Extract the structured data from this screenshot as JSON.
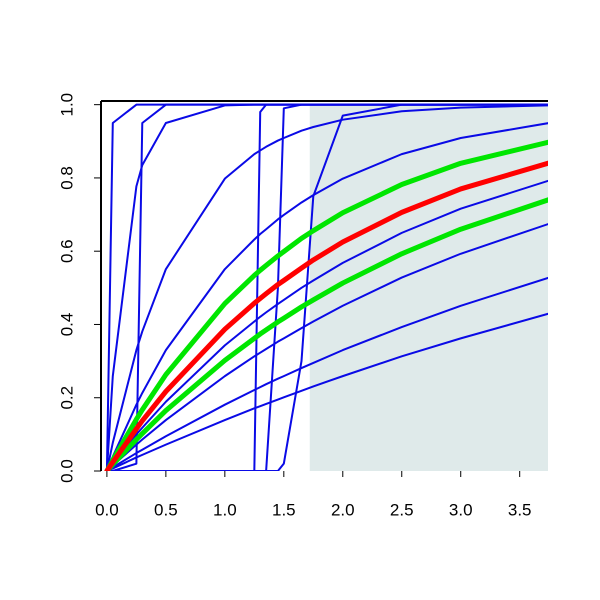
{
  "chart_data": {
    "type": "line",
    "x": [
      0,
      0.05,
      0.25,
      0.3,
      0.5,
      1.0,
      1.25,
      1.3,
      1.35,
      1.45,
      1.5,
      1.65,
      1.75,
      2.0,
      2.5,
      3.0,
      3.75
    ],
    "xlim": [
      -0.05,
      3.74
    ],
    "ylim": [
      0,
      1.01
    ],
    "xticks": [
      {
        "value": 0,
        "label": "0.0"
      },
      0.5,
      {
        "value": 1,
        "label": "1.0"
      },
      1.5,
      {
        "value": 2,
        "label": "2.0"
      },
      2.5,
      {
        "value": 3,
        "label": "3.0"
      },
      3.5
    ],
    "yticks": [
      {
        "value": 0,
        "label": "0.0"
      },
      0.2,
      0.4,
      0.6,
      0.8,
      {
        "value": 1,
        "label": "1.0"
      }
    ],
    "highlight": {
      "x": [
        1.72,
        3.74
      ],
      "y": [
        0,
        1
      ],
      "color": "#dfeaea"
    },
    "series": [
      {
        "color": "#0a0ae6",
        "line_width": 2,
        "values": [
          0,
          0.007,
          0.037,
          0.044,
          0.072,
          0.139,
          0.171,
          0.177,
          0.183,
          0.195,
          0.201,
          0.219,
          0.231,
          0.259,
          0.313,
          0.362,
          0.43
        ]
      },
      {
        "color": "#0a0ae6",
        "line_width": 2,
        "values": [
          0,
          0.01,
          0.049,
          0.058,
          0.095,
          0.181,
          0.221,
          0.229,
          0.237,
          0.252,
          0.259,
          0.281,
          0.295,
          0.33,
          0.393,
          0.451,
          0.528
        ]
      },
      {
        "color": "#0a0ae6",
        "line_width": 2,
        "values": [
          0,
          0.015,
          0.072,
          0.086,
          0.139,
          0.259,
          0.313,
          0.323,
          0.333,
          0.353,
          0.362,
          0.39,
          0.408,
          0.451,
          0.528,
          0.593,
          0.675
        ]
      },
      {
        "color": "#0a0ae6",
        "line_width": 2,
        "values": [
          0,
          0.021,
          0.1,
          0.118,
          0.189,
          0.343,
          0.408,
          0.421,
          0.433,
          0.456,
          0.467,
          0.5,
          0.52,
          0.568,
          0.65,
          0.716,
          0.793
        ]
      },
      {
        "color": "#0a0ae6",
        "line_width": 2,
        "values": [
          0,
          0.039,
          0.181,
          0.213,
          0.33,
          0.551,
          0.632,
          0.647,
          0.66,
          0.687,
          0.699,
          0.733,
          0.753,
          0.798,
          0.865,
          0.909,
          0.95
        ]
      },
      {
        "color": "#0a0ae6",
        "line_width": 2,
        "values": [
          0,
          0.077,
          0.33,
          0.381,
          0.551,
          0.798,
          0.865,
          0.875,
          0.885,
          0.902,
          0.909,
          0.929,
          0.939,
          0.959,
          0.982,
          0.992,
          0.998
        ]
      },
      {
        "color": "#0a0ae6",
        "line_width": 2,
        "values": [
          0,
          0.259,
          0.777,
          0.835,
          0.95,
          0.998,
          1,
          1,
          1,
          1,
          1,
          1,
          1,
          1,
          1,
          1,
          1
        ]
      },
      {
        "color": "#0a0ae6",
        "line_width": 2,
        "values": [
          0,
          0.95,
          1,
          1,
          1,
          1,
          1,
          1,
          1,
          1,
          1,
          1,
          1,
          1,
          1,
          1,
          1
        ]
      },
      {
        "color": "#0a0ae6",
        "line_width": 2,
        "values": [
          0,
          0,
          0.02,
          0.95,
          1,
          1,
          1,
          1,
          1,
          1,
          1,
          1,
          1,
          1,
          1,
          1,
          1
        ]
      },
      {
        "color": "#0a0ae6",
        "line_width": 2,
        "values": [
          0,
          0,
          0,
          0,
          0,
          0,
          0,
          0.98,
          1,
          1,
          1,
          1,
          1,
          1,
          1,
          1,
          1
        ]
      },
      {
        "color": "#0a0ae6",
        "line_width": 2,
        "values": [
          0,
          0,
          0,
          0,
          0,
          0,
          0,
          0,
          0,
          0.5,
          0.99,
          1,
          1,
          1,
          1,
          1,
          1
        ]
      },
      {
        "color": "#0a0ae6",
        "line_width": 2,
        "values": [
          0,
          0,
          0,
          0,
          0,
          0,
          0,
          0,
          0,
          0,
          0.02,
          0.3,
          0.75,
          0.97,
          1,
          1,
          1
        ]
      },
      {
        "color": "#00e600",
        "line_width": 5,
        "values": [
          0,
          0.018,
          0.086,
          0.102,
          0.165,
          0.302,
          0.362,
          0.374,
          0.385,
          0.407,
          0.417,
          0.448,
          0.467,
          0.513,
          0.593,
          0.66,
          0.741
        ]
      },
      {
        "color": "#00e600",
        "line_width": 5,
        "values": [
          0,
          0.03,
          0.141,
          0.167,
          0.263,
          0.457,
          0.534,
          0.548,
          0.561,
          0.587,
          0.599,
          0.635,
          0.656,
          0.705,
          0.782,
          0.84,
          0.898
        ]
      },
      {
        "color": "#ff0000",
        "line_width": 5,
        "values": [
          0,
          0.024,
          0.115,
          0.137,
          0.217,
          0.387,
          0.458,
          0.471,
          0.484,
          0.509,
          0.52,
          0.554,
          0.576,
          0.625,
          0.706,
          0.77,
          0.841
        ]
      }
    ]
  }
}
